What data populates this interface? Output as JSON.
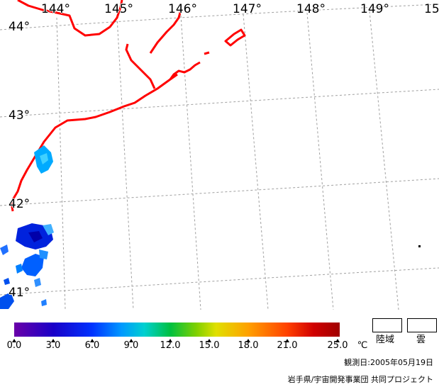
{
  "map": {
    "lon_labels": [
      "144°",
      "145°",
      "146°",
      "147°",
      "148°",
      "149°",
      "15"
    ],
    "lat_labels": [
      "44°",
      "43°",
      "42°",
      "41°"
    ],
    "coastline_color": "#ff0000",
    "grid_color": "#a0a0a0"
  },
  "colorbar": {
    "ticks": [
      "0.0",
      "3.0",
      "6.0",
      "9.0",
      "12.0",
      "15.0",
      "18.0",
      "21.0",
      "25.0"
    ],
    "unit": "℃"
  },
  "legend": {
    "land": "陸域",
    "cloud": "雲"
  },
  "footer": {
    "observation_date": "観測日:2005年05月19日",
    "credit": "岩手県/宇宙開発事業団 共同プロジェクト"
  }
}
